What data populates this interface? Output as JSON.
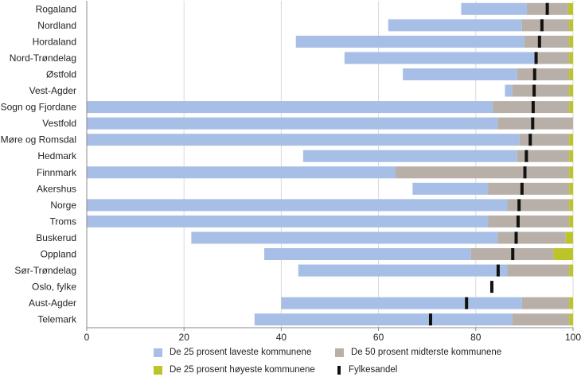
{
  "chart_data": {
    "type": "bar",
    "orientation": "horizontal-stacked-range",
    "categories": [
      "Rogaland",
      "Nordland",
      "Hordaland",
      "Nord-Trøndelag",
      "Østfold",
      "Vest-Agder",
      "Sogn og Fjordane",
      "Vestfold",
      "Møre og Romsdal",
      "Hedmark",
      "Finnmark",
      "Akershus",
      "Norge",
      "Troms",
      "Buskerud",
      "Oppland",
      "Sør-Trøndelag",
      "Oslo, fylke",
      "Aust-Agder",
      "Telemark"
    ],
    "xlim": [
      0,
      100
    ],
    "xticks": [
      0,
      20,
      40,
      60,
      80,
      100
    ],
    "grid": true,
    "legend_position": "bottom",
    "series": [
      {
        "name": "De 25 prosent laveste kommunene",
        "color": "#a7bfe6",
        "start": [
          77,
          62,
          43,
          53,
          65,
          86,
          0,
          0,
          0,
          44.5,
          0,
          67,
          0,
          0,
          21.5,
          36.5,
          43.5,
          null,
          40,
          34.5
        ],
        "end": [
          90.5,
          89.5,
          90,
          92.5,
          88.5,
          87.5,
          83.5,
          84.5,
          89,
          88.5,
          63.5,
          82.5,
          86.5,
          82.5,
          84.5,
          79,
          86.5,
          null,
          89.5,
          87.5
        ]
      },
      {
        "name": "De 50 prosent midterste kommunene",
        "color": "#b8b0a8",
        "start": [
          90.5,
          89.5,
          90,
          92.5,
          88.5,
          87.5,
          83.5,
          84.5,
          89,
          88.5,
          63.5,
          82.5,
          86.5,
          82.5,
          84.5,
          79,
          86.5,
          null,
          89.5,
          87.5
        ],
        "end": [
          99,
          99.2,
          99.2,
          99.2,
          99.2,
          99.2,
          99.2,
          100,
          99.2,
          99.2,
          99.2,
          99.2,
          99.2,
          99.2,
          98.5,
          96,
          99.2,
          null,
          99.2,
          99.2
        ]
      },
      {
        "name": "De 25 prosent høyeste kommunene",
        "color": "#bdc42a",
        "start": [
          99,
          99.2,
          99.2,
          99.2,
          99.2,
          99.2,
          99.2,
          100,
          99.2,
          99.2,
          99.2,
          99.2,
          99.2,
          99.2,
          98.5,
          96,
          99.2,
          null,
          99.2,
          99.2
        ],
        "end": [
          100,
          100,
          100,
          100,
          100,
          100,
          100,
          100,
          100,
          100,
          100,
          100,
          100,
          100,
          100,
          100,
          100,
          null,
          100,
          100
        ]
      }
    ],
    "marker_series": {
      "name": "Fylkesandel",
      "color": "#111111",
      "values": [
        94.7,
        93.6,
        93.1,
        92.4,
        92.1,
        92.0,
        91.8,
        91.7,
        91.2,
        90.4,
        90.1,
        89.5,
        88.9,
        88.7,
        88.3,
        87.6,
        84.6,
        83.3,
        78.1,
        70.7
      ]
    },
    "title": "",
    "xlabel": "",
    "ylabel": ""
  }
}
